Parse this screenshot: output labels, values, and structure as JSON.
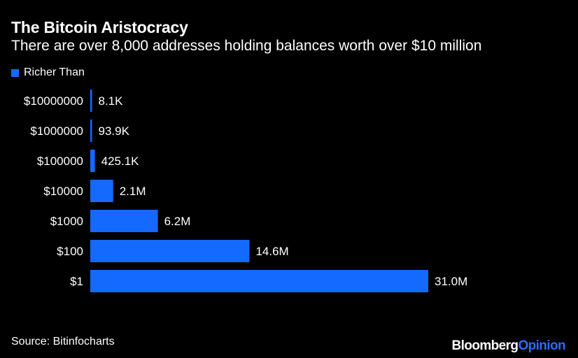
{
  "title": "The Bitcoin Aristocracy",
  "subtitle": "There are over 8,000 addresses holding balances worth over $10 million",
  "legend": {
    "label": "Richer Than",
    "color": "#1469ff"
  },
  "source": "Source: Bitinfocharts",
  "brand": {
    "primary": "Bloomberg",
    "secondary": "Opinion",
    "secondary_color": "#2d6bff"
  },
  "colors": {
    "background": "#000000",
    "bar": "#1469ff",
    "text": "#ffffff"
  },
  "chart_data": {
    "type": "bar",
    "orientation": "horizontal",
    "categories": [
      "$10000000",
      "$1000000",
      "$100000",
      "$10000",
      "$1000",
      "$100",
      "$1"
    ],
    "series": [
      {
        "name": "Richer Than",
        "values": [
          8100,
          93900,
          425100,
          2100000,
          6200000,
          14600000,
          31000000
        ],
        "labels": [
          "8.1K",
          "93.9K",
          "425.1K",
          "2.1M",
          "6.2M",
          "14.6M",
          "31.0M"
        ]
      }
    ],
    "xlim": [
      0,
      31000000
    ],
    "grid": false,
    "legend_position": "top-left",
    "title": "The Bitcoin Aristocracy",
    "xlabel": "",
    "ylabel": ""
  }
}
